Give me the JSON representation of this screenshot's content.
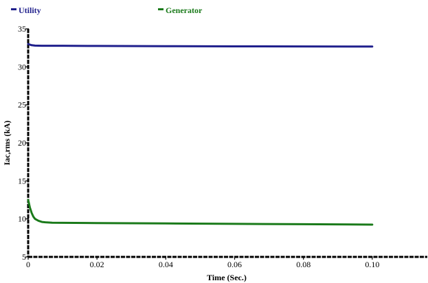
{
  "chart_data": {
    "type": "line",
    "title": "",
    "xlabel": "Time (Sec.)",
    "ylabel": "Iac,rms (kA)",
    "xlim": [
      0,
      0.116
    ],
    "ylim": [
      5,
      35
    ],
    "xticks": [
      0,
      0.02,
      0.04,
      0.06,
      0.08,
      0.1
    ],
    "xtick_labels": [
      "0",
      "0.02",
      "0.04",
      "0.06",
      "0.08",
      "0.10"
    ],
    "yticks": [
      5,
      10,
      15,
      20,
      25,
      30,
      35
    ],
    "ytick_labels": [
      "5",
      "10",
      "15",
      "20",
      "25",
      "30",
      "35"
    ],
    "grid": false,
    "legend_position": "top",
    "series": [
      {
        "name": "Utility",
        "color": "#1f1f8c",
        "x": [
          0,
          0.001,
          0.002,
          0.004,
          0.01,
          0.02,
          0.04,
          0.06,
          0.08,
          0.1
        ],
        "y": [
          33.0,
          32.85,
          32.8,
          32.78,
          32.77,
          32.75,
          32.72,
          32.7,
          32.68,
          32.67
        ]
      },
      {
        "name": "Generator",
        "color": "#1a7a1a",
        "x": [
          0,
          0.0005,
          0.001,
          0.0015,
          0.002,
          0.003,
          0.004,
          0.005,
          0.007,
          0.01,
          0.02,
          0.04,
          0.06,
          0.08,
          0.1
        ],
        "y": [
          12.5,
          11.5,
          10.8,
          10.3,
          10.0,
          9.75,
          9.6,
          9.55,
          9.5,
          9.48,
          9.45,
          9.4,
          9.35,
          9.3,
          9.25
        ]
      }
    ]
  }
}
